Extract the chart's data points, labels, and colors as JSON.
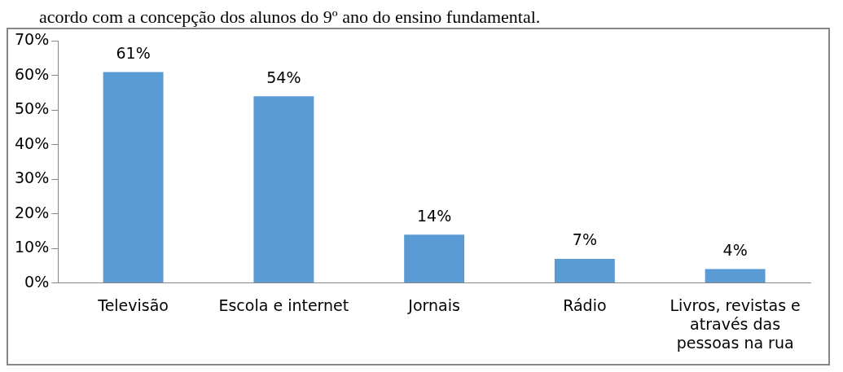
{
  "chart_data": {
    "type": "bar",
    "title": "acordo com a concepção dos alunos do 9º ano do ensino fundamental.",
    "categories": [
      "Televisão",
      "Escola e internet",
      "Jornais",
      "Rádio",
      "Livros, revistas e através das pessoas na rua"
    ],
    "values": [
      61,
      54,
      14,
      7,
      4
    ],
    "value_labels": [
      "61%",
      "54%",
      "14%",
      "7%",
      "4%"
    ],
    "color": "#5b9bd5",
    "ylim": [
      0,
      70
    ],
    "yticks": [
      {
        "value": 0,
        "label": "0%"
      },
      {
        "value": 10,
        "label": "10%"
      },
      {
        "value": 20,
        "label": "20%"
      },
      {
        "value": 30,
        "label": "30%"
      },
      {
        "value": 40,
        "label": "40%"
      },
      {
        "value": 50,
        "label": "50%"
      },
      {
        "value": 60,
        "label": "60%"
      },
      {
        "value": 70,
        "label": "70%"
      }
    ],
    "grid": false,
    "legend": false
  }
}
